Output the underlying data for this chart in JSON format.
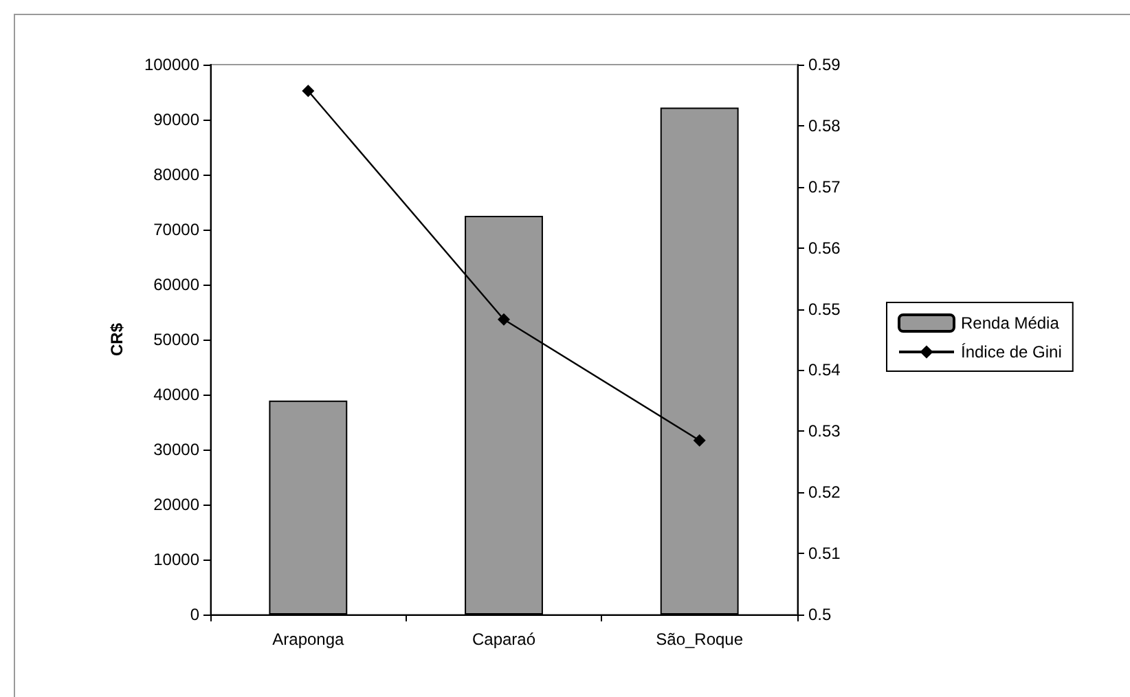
{
  "chart_data": {
    "type": "bar",
    "categories": [
      "Araponga",
      "Caparaó",
      "São_Roque"
    ],
    "ylabel": "CR$",
    "series": [
      {
        "name": "Renda Média",
        "color": "#999999",
        "values": [
          38900,
          72500,
          92200
        ]
      },
      {
        "name": "Índice de Gini",
        "type": "line",
        "axis": "y2",
        "color": "#000000",
        "values": [
          0.5857,
          0.5483,
          0.5285
        ]
      }
    ],
    "ylim": [
      0,
      100000
    ],
    "yticks": [
      0,
      10000,
      20000,
      30000,
      40000,
      50000,
      60000,
      70000,
      80000,
      90000,
      100000
    ],
    "y2lim": [
      0.5,
      0.59
    ],
    "y2ticks": [
      0.5,
      0.51,
      0.52,
      0.53,
      0.54,
      0.55,
      0.56,
      0.57,
      0.58,
      0.59
    ],
    "grid": false,
    "legend": "right",
    "marker": "diamond",
    "line_style": "solid"
  }
}
